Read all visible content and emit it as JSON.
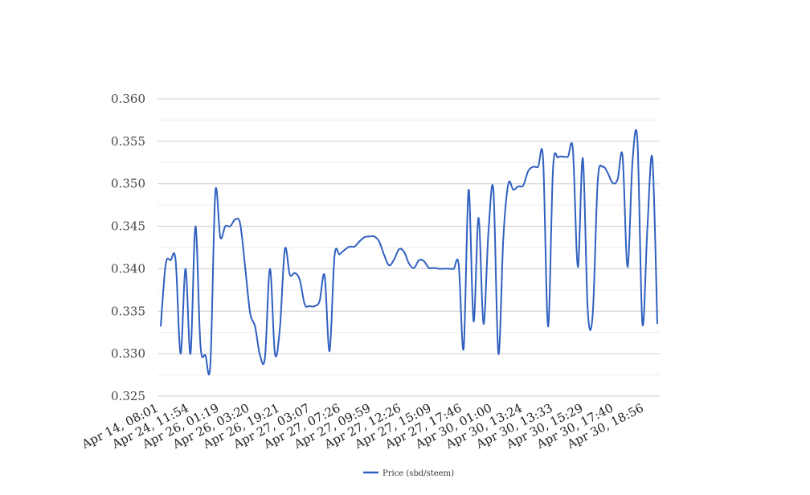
{
  "chart_data": {
    "type": "line",
    "title": "",
    "xlabel": "",
    "ylabel": "",
    "ylim": [
      0.325,
      0.36
    ],
    "yticks": [
      "0.325",
      "0.330",
      "0.335",
      "0.340",
      "0.345",
      "0.350",
      "0.355",
      "0.360"
    ],
    "grid": true,
    "legend_position": "bottom",
    "x_tick_labels": [
      "Apr 14, 08:01",
      "Apr 24, 11:54",
      "Apr 26, 01:19",
      "Apr 26, 03:20",
      "Apr 26, 19:21",
      "Apr 27, 03:07",
      "Apr 27, 07:26",
      "Apr 27, 09:59",
      "Apr 27, 12:26",
      "Apr 27, 15:09",
      "Apr 27, 17:46",
      "Apr 30, 01:00",
      "Apr 30, 13:24",
      "Apr 30, 13:33",
      "Apr 30, 15:29",
      "Apr 30, 17:40",
      "Apr 30, 18:56"
    ],
    "series": [
      {
        "name": "Price (sbd/steem)",
        "color": "#3060c0",
        "values": [
          0.3332,
          0.3405,
          0.341,
          0.341,
          0.33,
          0.34,
          0.33,
          0.345,
          0.331,
          0.3298,
          0.3288,
          0.349,
          0.3437,
          0.345,
          0.345,
          0.3458,
          0.3453,
          0.3402,
          0.3348,
          0.3332,
          0.3298,
          0.3296,
          0.34,
          0.33,
          0.333,
          0.3423,
          0.3393,
          0.3395,
          0.3387,
          0.3358,
          0.3356,
          0.3356,
          0.3362,
          0.3392,
          0.3303,
          0.3415,
          0.3417,
          0.3422,
          0.3426,
          0.3426,
          0.3432,
          0.3437,
          0.3438,
          0.3438,
          0.3432,
          0.3416,
          0.3404,
          0.3411,
          0.3423,
          0.342,
          0.3406,
          0.3401,
          0.341,
          0.3409,
          0.3401,
          0.3401,
          0.34,
          0.34,
          0.34,
          0.34,
          0.3405,
          0.3306,
          0.3493,
          0.3338,
          0.346,
          0.3335,
          0.3444,
          0.3492,
          0.33,
          0.3437,
          0.35,
          0.3493,
          0.3497,
          0.3498,
          0.3515,
          0.352,
          0.352,
          0.3529,
          0.3332,
          0.3518,
          0.3531,
          0.3532,
          0.3532,
          0.354,
          0.3402,
          0.353,
          0.335,
          0.3347,
          0.3503,
          0.352,
          0.3513,
          0.3501,
          0.3505,
          0.3533,
          0.3402,
          0.3526,
          0.355,
          0.3335,
          0.3448,
          0.353,
          0.3335
        ]
      }
    ]
  }
}
